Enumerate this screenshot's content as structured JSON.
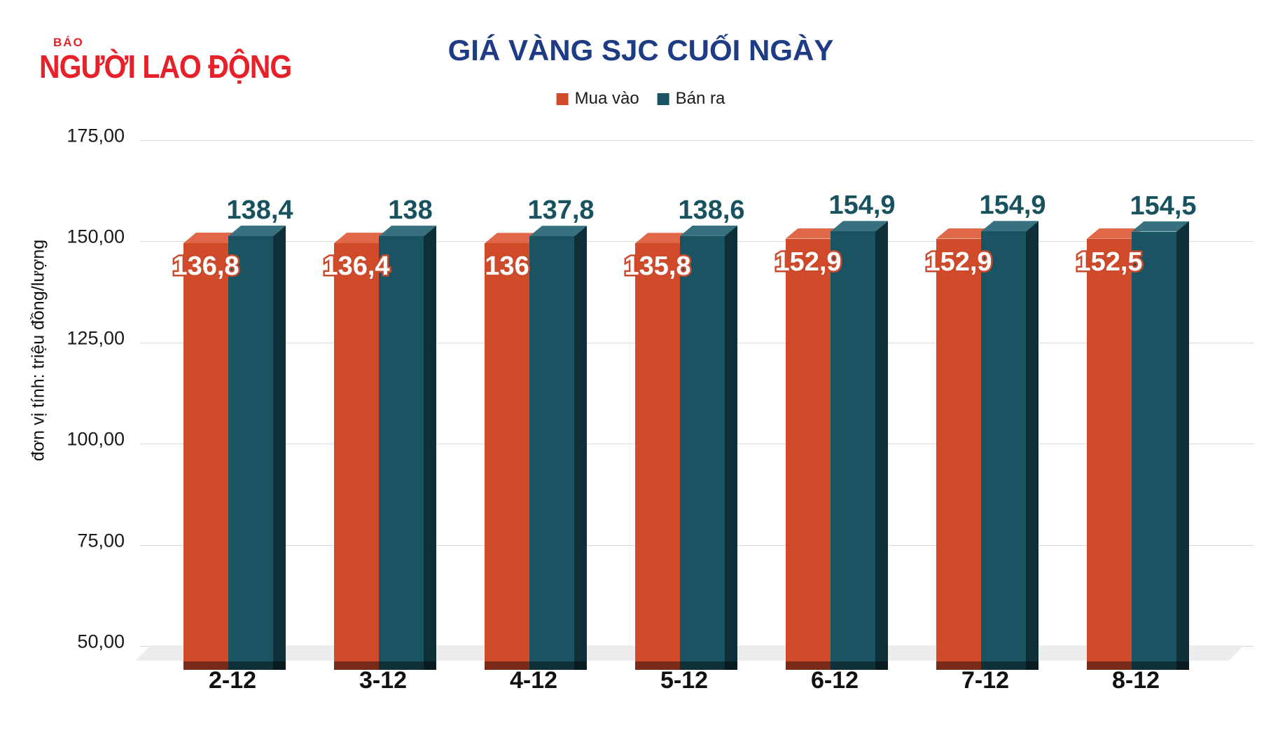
{
  "logo": {
    "small": "BÁO",
    "main": "NGƯỜI LAO ĐỘNG",
    "color": "#e62129"
  },
  "title": "GIÁ VÀNG SJC CUỐI NGÀY",
  "title_color": "#1e3c85",
  "legend": {
    "items": [
      {
        "label": "Mua vào",
        "color": "#d14a2a"
      },
      {
        "label": "Bán ra",
        "color": "#1a5362"
      }
    ]
  },
  "axis": {
    "y_title": "đơn vị tính: triệu đồng/lượng",
    "y_tick_labels": [
      "175,00",
      "150,00",
      "125,00",
      "100,00",
      "75,00",
      "50,00"
    ]
  },
  "chart_data": {
    "type": "bar",
    "title": "GIÁ VÀNG SJC CUỐI NGÀY",
    "ylabel": "đơn vị tính: triệu đồng/lượng",
    "ylim": [
      50,
      175
    ],
    "yticks": [
      175,
      150,
      125,
      100,
      75,
      50
    ],
    "grid": true,
    "legend_position": "top",
    "categories": [
      "2-12",
      "3-12",
      "4-12",
      "5-12",
      "6-12",
      "7-12",
      "8-12"
    ],
    "series": [
      {
        "name": "Mua vào",
        "color": "#d14a2a",
        "values": [
          136.8,
          136.4,
          136.0,
          135.8,
          152.9,
          152.9,
          152.5
        ],
        "labels": [
          "136,8",
          "136,4",
          "136",
          "135,8",
          "152,9",
          "152,9",
          "152,5"
        ]
      },
      {
        "name": "Bán ra",
        "color": "#1a5362",
        "values": [
          138.4,
          138.0,
          137.8,
          138.6,
          154.9,
          154.9,
          154.5
        ],
        "labels": [
          "138,4",
          "138",
          "137,8",
          "138,6",
          "154,9",
          "154,9",
          "154,5"
        ]
      }
    ]
  }
}
